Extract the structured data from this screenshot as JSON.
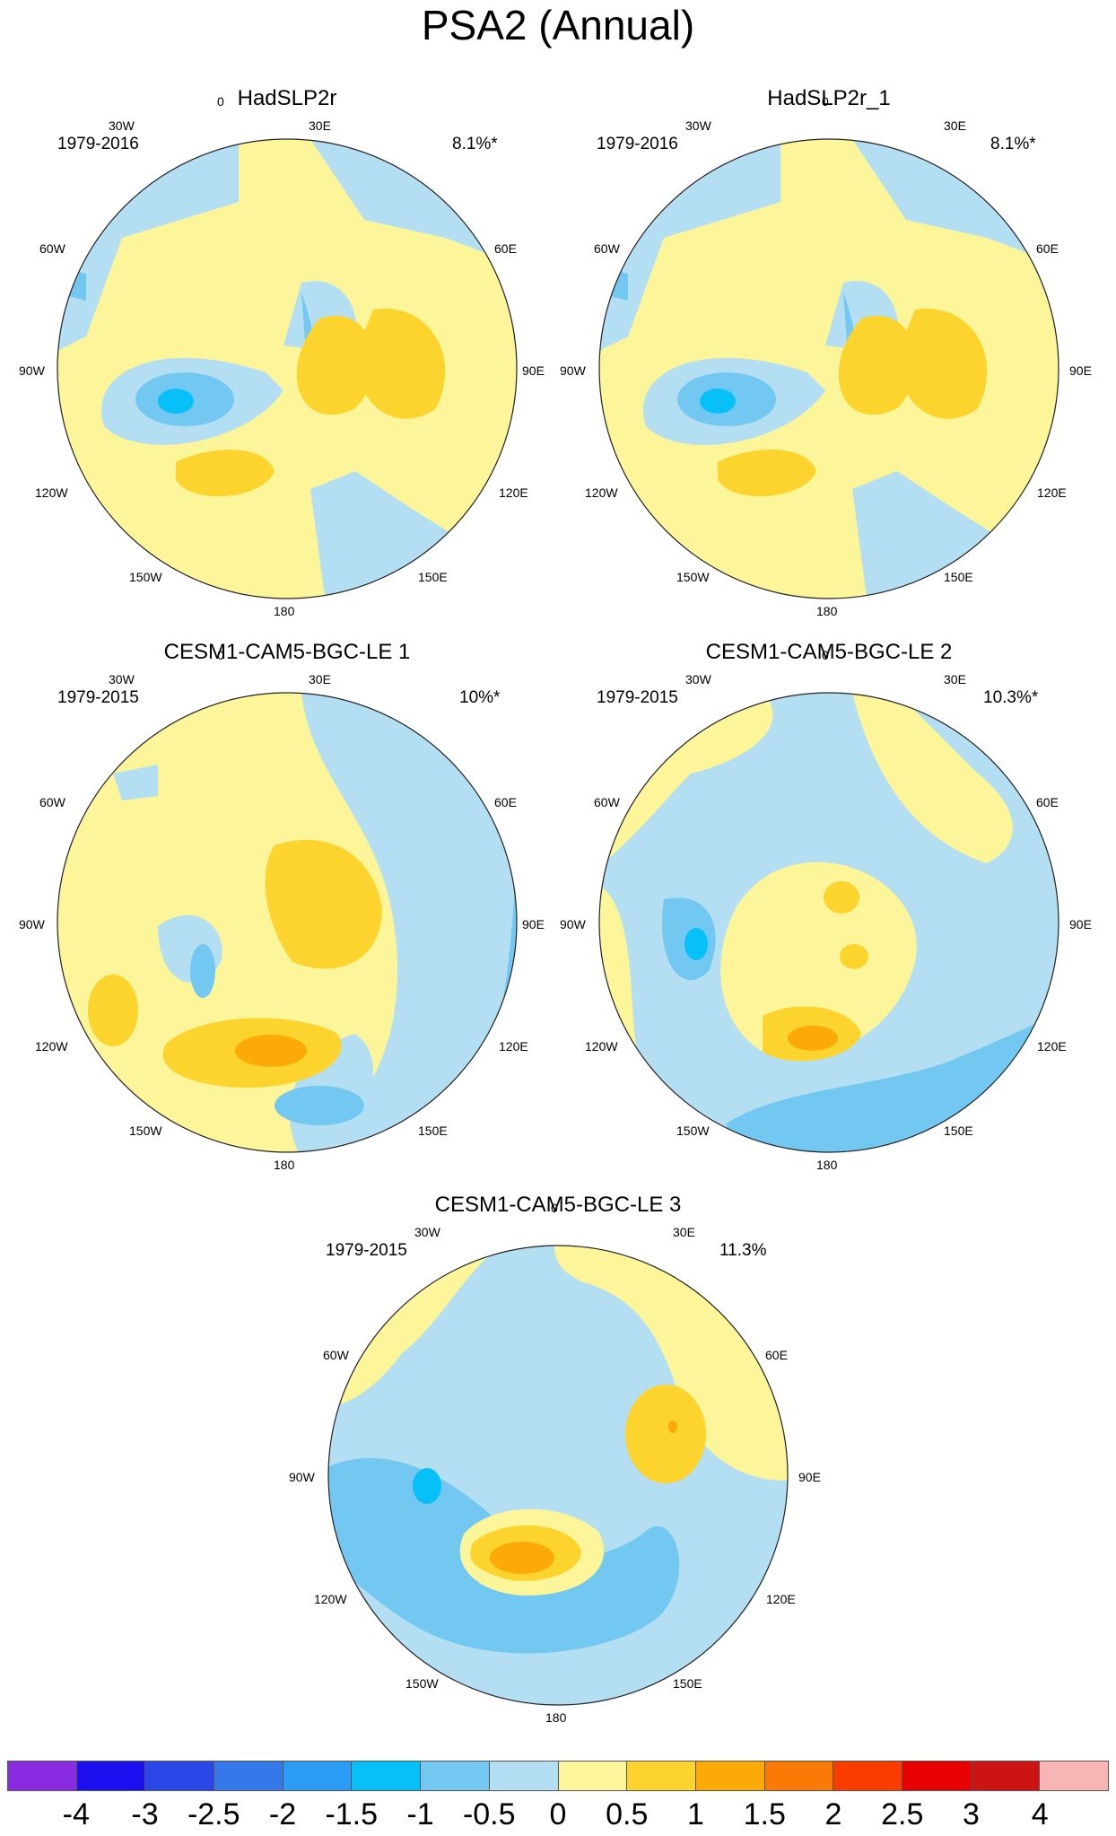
{
  "title": "PSA2 (Annual)",
  "longitude_labels": {
    "top": "0",
    "n30w": "30W",
    "n30e": "30E",
    "w60": "60W",
    "e60": "60E",
    "w90": "90W",
    "e90": "90E",
    "w120": "120W",
    "e120": "120E",
    "w150": "150W",
    "e150": "150E",
    "bottom": "180"
  },
  "panels": [
    {
      "title": "HadSLP2r",
      "years": "1979-2016",
      "pct": "8.1%*"
    },
    {
      "title": "HadSLP2r_1",
      "years": "1979-2016",
      "pct": "8.1%*"
    },
    {
      "title": "CESM1-CAM5-BGC-LE 1",
      "years": "1979-2015",
      "pct": "10%*"
    },
    {
      "title": "CESM1-CAM5-BGC-LE 2",
      "years": "1979-2015",
      "pct": "10.3%*"
    },
    {
      "title": "CESM1-CAM5-BGC-LE 3",
      "years": "1979-2015",
      "pct": "11.3%"
    }
  ],
  "colorbar": {
    "colors": [
      "#8a2be2",
      "#1a10f0",
      "#2a48e8",
      "#3478ea",
      "#2a9cf5",
      "#08c0f8",
      "#72c8f0",
      "#b4dff2",
      "#fcf59a",
      "#fdd42e",
      "#fcaa08",
      "#fa7a08",
      "#fa3c00",
      "#e80000",
      "#cc1414",
      "#f9b4b4"
    ],
    "labels": [
      "-4",
      "-3",
      "-2.5",
      "-2",
      "-1.5",
      "-1",
      "-0.5",
      "0",
      "0.5",
      "1",
      "1.5",
      "2",
      "2.5",
      "3",
      "4"
    ]
  }
}
